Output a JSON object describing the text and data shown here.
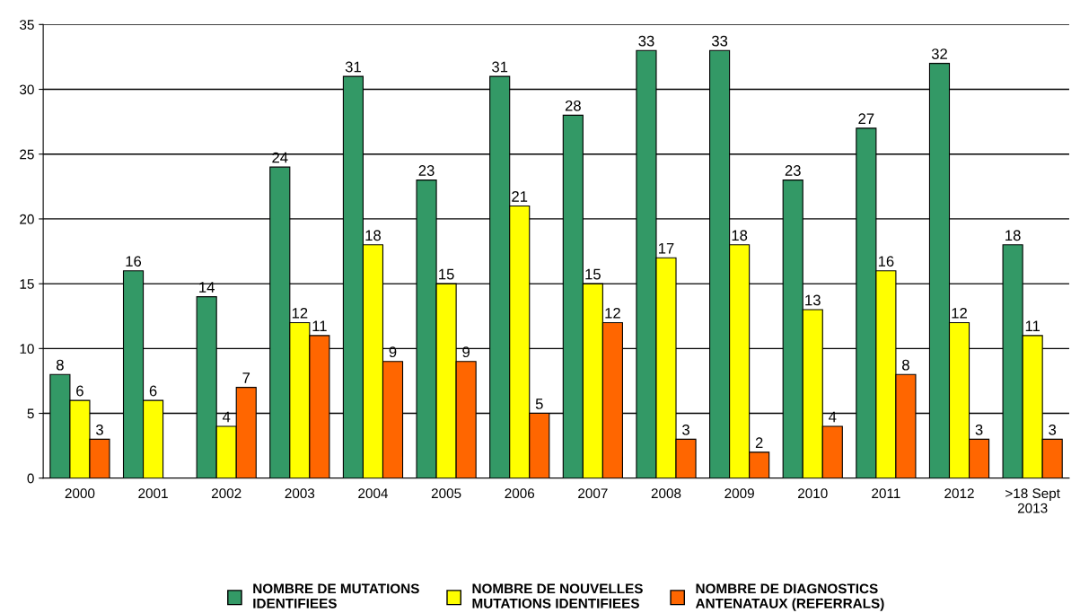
{
  "chart_data": {
    "type": "bar",
    "categories": [
      "2000",
      "2001",
      "2002",
      "2003",
      "2004",
      "2005",
      "2006",
      "2007",
      "2008",
      "2009",
      "2010",
      "2011",
      "2012",
      ">18 Sept\n2013"
    ],
    "series": [
      {
        "name": "NOMBRE DE MUTATIONS\nIDENTIFIEES",
        "color": "#339966",
        "values": [
          8,
          16,
          14,
          24,
          31,
          23,
          31,
          28,
          33,
          33,
          23,
          27,
          32,
          18
        ]
      },
      {
        "name": "NOMBRE DE NOUVELLES\nMUTATIONS IDENTIFIEES",
        "color": "#ffff00",
        "values": [
          6,
          6,
          4,
          12,
          18,
          15,
          21,
          15,
          17,
          18,
          13,
          16,
          12,
          11
        ]
      },
      {
        "name": "NOMBRE DE DIAGNOSTICS\nANTENATAUX (REFERRALS)",
        "color": "#ff6600",
        "values": [
          3,
          null,
          7,
          11,
          9,
          9,
          5,
          12,
          3,
          2,
          4,
          8,
          3,
          3
        ]
      }
    ],
    "ylim": [
      0,
      35
    ],
    "yticks": [
      0,
      5,
      10,
      15,
      20,
      25,
      30,
      35
    ],
    "grid": "y",
    "legend": "bottom",
    "data_labels": true
  }
}
